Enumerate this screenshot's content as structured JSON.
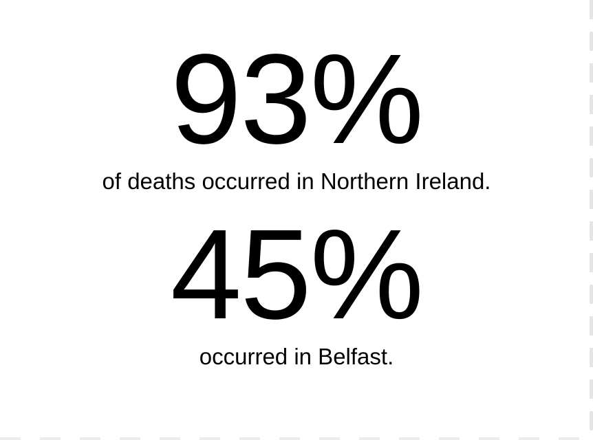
{
  "stats": [
    {
      "value": "93%",
      "caption": "of deaths occurred in Northern Ireland."
    },
    {
      "value": "45%",
      "caption": "occurred in Belfast."
    }
  ],
  "colors": {
    "background": "#ffffff",
    "text": "#000000",
    "edge": "#e6e6e6"
  }
}
